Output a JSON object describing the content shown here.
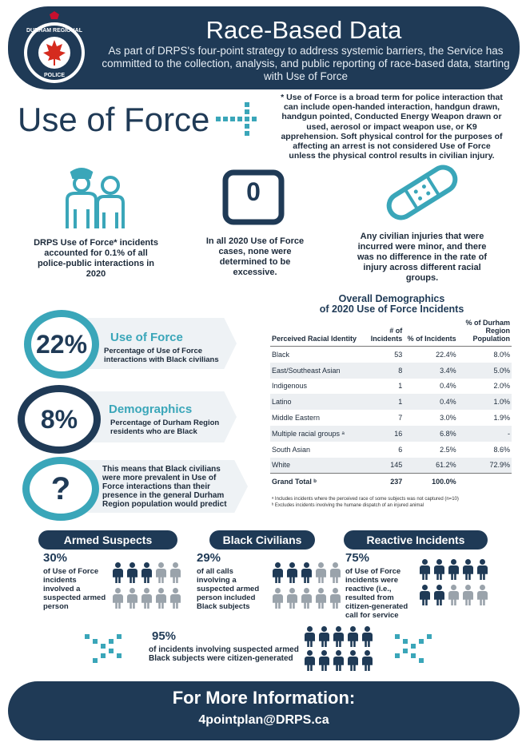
{
  "header": {
    "title": "Race-Based Data",
    "text": "As part of DRPS's four-point strategy to address systemic barriers, the Service has committed to the collection, analysis, and public reporting of race-based data, starting with Use of Force",
    "badge_text_top": "DURHAM REGIONAL",
    "badge_text_bottom": "POLICE",
    "colors": {
      "navy": "#1f3a56",
      "teal": "#3aa6b9"
    }
  },
  "use_of_force": {
    "title": "Use of Force",
    "note": "* Use of Force is a broad term for police interaction that can include open-handed interaction, handgun drawn, handgun pointed, Conducted Energy Weapon drawn or used, aerosol or impact weapon use, or K9 apprehension. Soft physical control for the purposes of affecting an arrest is not considered Use of Force unless the physical control results in civilian injury."
  },
  "icon_stats": [
    {
      "icon": "officer-civilian-icon",
      "text": "DRPS Use of Force* incidents accounted for 0.1% of all police-public interactions in 2020"
    },
    {
      "icon": "zero-box-icon",
      "value": "0",
      "text": "In all 2020 Use of Force cases, none were determined to be excessive."
    },
    {
      "icon": "bandage-icon",
      "text": "Any civilian injuries that were incurred were minor, and there was no difference in the rate of injury across different racial groups."
    }
  ],
  "circles": [
    {
      "value": "22%",
      "heading": "Use of Force",
      "text": "Percentage of Use of Force interactions with Black civilians"
    },
    {
      "value": "8%",
      "heading": "Demographics",
      "text": "Percentage of Durham Region residents who are Black"
    },
    {
      "value": "?",
      "text": "This means that Black civilians were more prevalent in Use of Force interactions than their presence in the general Durham Region population would predict"
    }
  ],
  "table": {
    "title_line1": "Overall Demographics",
    "title_line2": "of 2020 Use of Force Incidents",
    "headers": [
      "Perceived Racial Identity",
      "# of Incidents",
      "% of Incidents",
      "% of Durham Region Population"
    ],
    "rows": [
      [
        "Black",
        "53",
        "22.4%",
        "8.0%"
      ],
      [
        "East/Southeast Asian",
        "8",
        "3.4%",
        "5.0%"
      ],
      [
        "Indigenous",
        "1",
        "0.4%",
        "2.0%"
      ],
      [
        "Latino",
        "1",
        "0.4%",
        "1.0%"
      ],
      [
        "Middle Eastern",
        "7",
        "3.0%",
        "1.9%"
      ],
      [
        "Multiple racial groups ᵃ",
        "16",
        "6.8%",
        "-"
      ],
      [
        "South Asian",
        "6",
        "2.5%",
        "8.6%"
      ],
      [
        "White",
        "145",
        "61.2%",
        "72.9%"
      ]
    ],
    "total": [
      "Grand Total ᵇ",
      "237",
      "100.0%",
      ""
    ],
    "footnote_a": "ᵃ Includes incidents where the perceived race of some subjects was not captured (n=10)",
    "footnote_b": "ᵇ Excludes incidents involving the humane dispatch of an injured animal"
  },
  "bottom": {
    "armed": {
      "label": "Armed Suspects",
      "pct": "30%",
      "text": "of Use of Force incidents involved a suspected armed person",
      "filled": 3,
      "total": 10
    },
    "black": {
      "label": "Black Civilians",
      "pct": "29%",
      "text": "of all calls involving a suspected armed person included Black subjects",
      "filled": 3,
      "total": 10
    },
    "reactive": {
      "label": "Reactive Incidents",
      "pct": "75%",
      "text": "of Use of Force incidents were reactive (i.e., resulted from citizen-generated call for service",
      "filled": 7,
      "total": 10
    },
    "citizen": {
      "pct": "95%",
      "text": "of incidents involving suspected armed Black subjects were citizen-generated",
      "filled": 10,
      "total": 10
    }
  },
  "footer": {
    "title": "For More Information:",
    "email": "4pointplan@DRPS.ca"
  }
}
